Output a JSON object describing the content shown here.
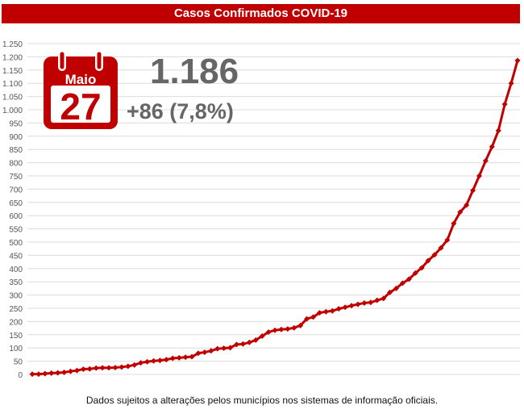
{
  "chart_data": {
    "type": "line",
    "title": "Casos Confirmados COVID-19",
    "ylim": [
      0,
      1250
    ],
    "ytick_step": 50,
    "grid": true,
    "line_color": "#c00000",
    "values": [
      1,
      1,
      3,
      5,
      6,
      8,
      12,
      15,
      20,
      21,
      24,
      25,
      25,
      26,
      28,
      31,
      36,
      44,
      48,
      51,
      53,
      56,
      61,
      63,
      65,
      67,
      80,
      84,
      89,
      97,
      99,
      101,
      113,
      115,
      121,
      130,
      145,
      160,
      167,
      170,
      172,
      176,
      185,
      210,
      217,
      233,
      237,
      240,
      248,
      254,
      260,
      265,
      270,
      272,
      280,
      287,
      310,
      325,
      345,
      360,
      383,
      403,
      430,
      452,
      478,
      508,
      570,
      613,
      640,
      695,
      750,
      807,
      860,
      921,
      1021,
      1100,
      1186
    ]
  },
  "calendar": {
    "month": "Maio",
    "day": "27",
    "icon": "calendar-icon",
    "color": "#c00000"
  },
  "summary": {
    "total": "1.186",
    "delta": "+86 (7,8%)"
  },
  "footer": "Dados sujeitos a alterações pelos municípios nos sistemas de informação oficiais."
}
